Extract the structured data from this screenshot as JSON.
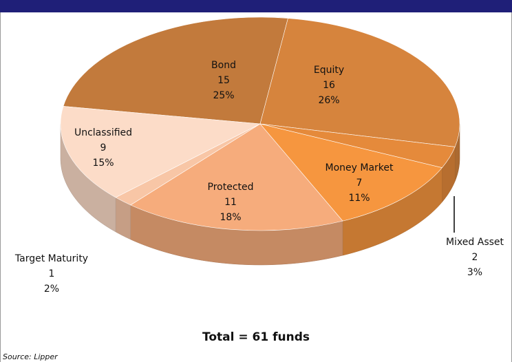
{
  "chart_data": {
    "type": "pie3d",
    "categories": [
      "Bond",
      "Equity",
      "Mixed Asset",
      "Money Market",
      "Protected",
      "Target Maturity",
      "Unclassified"
    ],
    "values": [
      15,
      16,
      2,
      7,
      11,
      1,
      9
    ],
    "percent_labels": [
      "25%",
      "26%",
      "3%",
      "11%",
      "18%",
      "2%",
      "15%"
    ],
    "colors": [
      "#c27a3c",
      "#d6843d",
      "#e58a3b",
      "#f6963f",
      "#f6ac7c",
      "#f8c6a6",
      "#fcdcc8"
    ],
    "total_label": "Total = 61 funds",
    "source": "Source: Lipper"
  }
}
